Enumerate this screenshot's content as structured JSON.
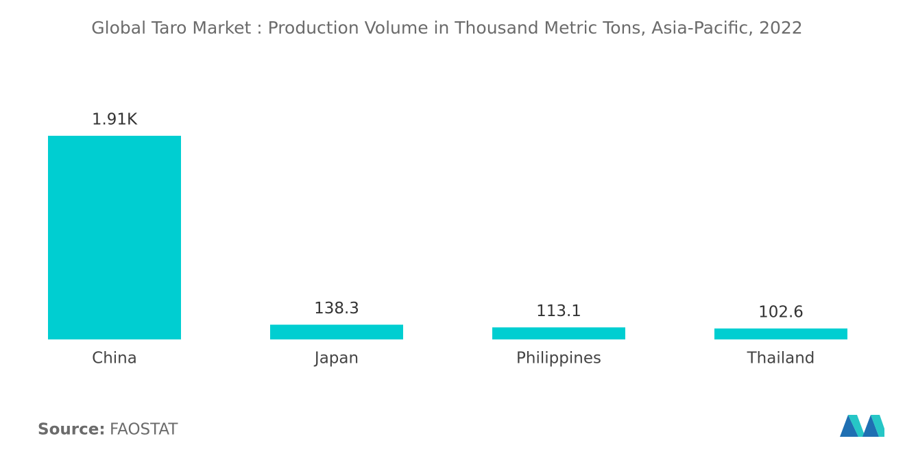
{
  "chart_data": {
    "type": "bar",
    "title": "Global Taro Market : Production Volume in Thousand Metric Tons, Asia-Pacific, 2022",
    "categories": [
      "China",
      "Japan",
      "Philippines",
      "Thailand"
    ],
    "values": [
      1910,
      138.3,
      113.1,
      102.6
    ],
    "value_labels": [
      "1.91K",
      "138.3",
      "113.1",
      "102.6"
    ],
    "color": "#00ced1",
    "source_label": "Source:",
    "source": "FAOSTAT"
  }
}
